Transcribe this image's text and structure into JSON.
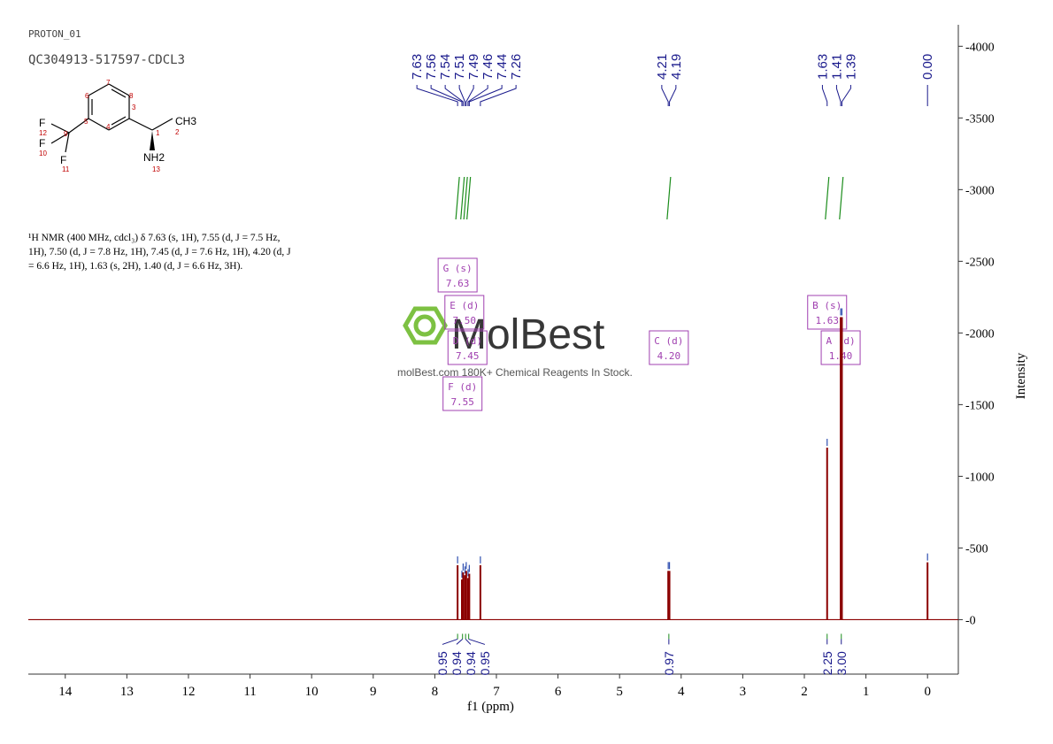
{
  "header": {
    "line1": "PROTON_01",
    "line2": "QC304913-517597-CDCL3"
  },
  "description": {
    "line1": "¹H NMR (400 MHz, cdcl₃) δ 7.63 (s, 1H), 7.55 (d, J = 7.5 Hz,",
    "line2": "1H), 7.50 (d, J = 7.8 Hz, 1H), 7.45 (d, J = 7.6 Hz, 1H), 4.20 (d, J",
    "line3": "= 6.6 Hz, 1H), 1.63 (s, 2H), 1.40 (d, J = 6.6 Hz, 3H)."
  },
  "structure": {
    "atom_labels": [
      "F",
      "F",
      "F",
      "CH3",
      "NH2"
    ],
    "atom_numbers": [
      "1",
      "2",
      "3",
      "4",
      "5",
      "6",
      "7",
      "8",
      "9",
      "10",
      "11",
      "12",
      "13"
    ]
  },
  "watermark": {
    "brand": "MolBest",
    "tagline": "molBest.com 180K+ Chemical Reagents In Stock."
  },
  "colors": {
    "spectrum": "#8b0000",
    "peak_labels": "#1a1a8c",
    "integration": "#1a8c1a",
    "multiplet_box": "#a040b0",
    "axis": "#333333"
  },
  "chart_data": {
    "type": "line",
    "title": "",
    "xlabel": "f1 (ppm)",
    "ylabel": "Intensity",
    "xlim": [
      14.6,
      -0.5
    ],
    "ylim": [
      -380,
      4150
    ],
    "x_ticks": [
      14,
      13,
      12,
      11,
      10,
      9,
      8,
      7,
      6,
      5,
      4,
      3,
      2,
      1,
      0
    ],
    "y_ticks": [
      0,
      500,
      1000,
      1500,
      2000,
      2500,
      3000,
      3500,
      4000
    ],
    "peaks": [
      {
        "ppm": 7.63,
        "height": 380
      },
      {
        "ppm": 7.56,
        "height": 280
      },
      {
        "ppm": 7.54,
        "height": 330
      },
      {
        "ppm": 7.51,
        "height": 310
      },
      {
        "ppm": 7.49,
        "height": 340
      },
      {
        "ppm": 7.46,
        "height": 290
      },
      {
        "ppm": 7.44,
        "height": 320
      },
      {
        "ppm": 7.26,
        "height": 380
      },
      {
        "ppm": 4.21,
        "height": 340
      },
      {
        "ppm": 4.19,
        "height": 340
      },
      {
        "ppm": 1.63,
        "height": 1200
      },
      {
        "ppm": 1.41,
        "height": 2110
      },
      {
        "ppm": 1.39,
        "height": 2110
      },
      {
        "ppm": 0.0,
        "height": 400
      }
    ],
    "peak_labels": [
      "7.63",
      "7.56",
      "7.54",
      "7.51",
      "7.49",
      "7.46",
      "7.44",
      "7.26",
      "4.21",
      "4.19",
      "1.63",
      "1.41",
      "1.39",
      "0.00"
    ],
    "multiplets": [
      {
        "label": "G (s)",
        "shift": "7.63"
      },
      {
        "label": "E (d)",
        "shift": "7.50"
      },
      {
        "label": "D (d)",
        "shift": "7.45"
      },
      {
        "label": "F (d)",
        "shift": "7.55"
      },
      {
        "label": "C (d)",
        "shift": "4.20"
      },
      {
        "label": "B (s)",
        "shift": "1.63"
      },
      {
        "label": "A (d)",
        "shift": "1.40"
      }
    ],
    "integrations": [
      {
        "ppm": 7.63,
        "value": "0.95"
      },
      {
        "ppm": 7.55,
        "value": "0.94"
      },
      {
        "ppm": 7.5,
        "value": "0.94"
      },
      {
        "ppm": 7.45,
        "value": "0.95"
      },
      {
        "ppm": 4.2,
        "value": "0.97"
      },
      {
        "ppm": 1.63,
        "value": "2.25"
      },
      {
        "ppm": 1.4,
        "value": "3.00"
      }
    ],
    "integral_curves": [
      {
        "ppm": 7.63
      },
      {
        "ppm": 7.55
      },
      {
        "ppm": 7.5
      },
      {
        "ppm": 7.45
      },
      {
        "ppm": 4.2
      },
      {
        "ppm": 1.63
      },
      {
        "ppm": 1.4
      }
    ]
  }
}
